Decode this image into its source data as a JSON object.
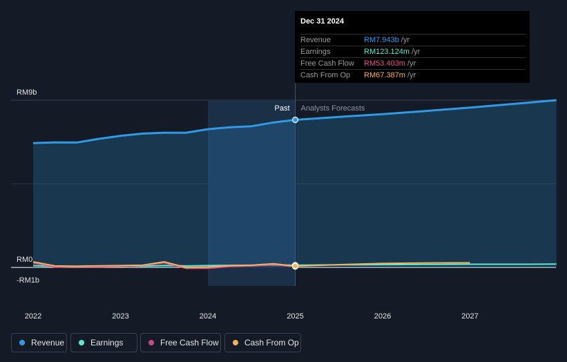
{
  "tooltip": {
    "date": "Dec 31 2024",
    "rows": [
      {
        "name": "Revenue",
        "value": "RM7.943b",
        "unit": "/yr",
        "color": "#2f9be6"
      },
      {
        "name": "Earnings",
        "value": "RM123.124m",
        "unit": "/yr",
        "color": "#5de8d0"
      },
      {
        "name": "Free Cash Flow",
        "value": "RM53.403m",
        "unit": "/yr",
        "color": "#e0508a"
      },
      {
        "name": "Cash From Op",
        "value": "RM67.387m",
        "unit": "/yr",
        "color": "#f2b25c"
      }
    ]
  },
  "legend": [
    {
      "label": "Revenue",
      "color": "#2f9be6"
    },
    {
      "label": "Earnings",
      "color": "#5de8d0"
    },
    {
      "label": "Free Cash Flow",
      "color": "#c8458a"
    },
    {
      "label": "Cash From Op",
      "color": "#f2b25c"
    }
  ],
  "chart_data": {
    "type": "line",
    "title": "",
    "xlabel": "",
    "ylabel": "",
    "xlim": [
      2022.0,
      2027.99
    ],
    "ylim": [
      -1,
      9
    ],
    "y_ticks": [
      {
        "value": 9,
        "label": "RM9b"
      },
      {
        "value": 0,
        "label": "RM0"
      },
      {
        "value": -1,
        "label": "-RM1b"
      }
    ],
    "x_ticks": [
      {
        "value": 2022,
        "label": "2022"
      },
      {
        "value": 2023,
        "label": "2023"
      },
      {
        "value": 2024,
        "label": "2024"
      },
      {
        "value": 2025,
        "label": "2025"
      },
      {
        "value": 2026,
        "label": "2026"
      },
      {
        "value": 2027,
        "label": "2027"
      }
    ],
    "past_label": "Past",
    "forecast_label": "Analysts Forecasts",
    "divider_x": 2025.0,
    "highlight_start": 2024.0,
    "grid": true,
    "legend_position": "bottom-left",
    "series": [
      {
        "name": "Revenue",
        "color": "#2f9be6",
        "area": true,
        "x": [
          2022.0,
          2022.25,
          2022.5,
          2022.75,
          2023.0,
          2023.25,
          2023.5,
          2023.75,
          2024.0,
          2024.25,
          2024.5,
          2024.75,
          2025.0,
          2025.5,
          2026.0,
          2026.5,
          2027.0,
          2027.5,
          2027.99
        ],
        "y": [
          6.69,
          6.73,
          6.72,
          6.92,
          7.08,
          7.2,
          7.25,
          7.25,
          7.44,
          7.54,
          7.6,
          7.8,
          7.94,
          8.1,
          8.25,
          8.42,
          8.6,
          8.8,
          9.0
        ]
      },
      {
        "name": "Earnings",
        "color": "#5de8d0",
        "area": false,
        "x": [
          2022.0,
          2022.25,
          2022.5,
          2022.75,
          2023.0,
          2023.25,
          2023.5,
          2023.75,
          2024.0,
          2024.25,
          2024.5,
          2024.75,
          2025.0,
          2025.5,
          2026.0,
          2026.5,
          2027.0,
          2027.5,
          2027.99
        ],
        "y": [
          0.1,
          0.05,
          0.05,
          0.06,
          0.08,
          0.07,
          0.1,
          0.08,
          0.1,
          0.11,
          0.12,
          0.13,
          0.12,
          0.14,
          0.15,
          0.16,
          0.17,
          0.17,
          0.18
        ]
      },
      {
        "name": "Free Cash Flow",
        "color": "#e0508a",
        "area": false,
        "x": [
          2022.0,
          2022.25,
          2022.5,
          2022.75,
          2023.0,
          2023.25,
          2023.5,
          2023.75,
          2024.0,
          2024.25,
          2024.5,
          2024.75,
          2025.0
        ],
        "y": [
          0.25,
          0.02,
          0.04,
          0.03,
          0.06,
          0.1,
          0.25,
          -0.05,
          -0.05,
          0.05,
          0.08,
          0.15,
          0.05
        ]
      },
      {
        "name": "Cash From Op",
        "color": "#f2b25c",
        "area": false,
        "x": [
          2022.0,
          2022.25,
          2022.5,
          2022.75,
          2023.0,
          2023.25,
          2023.5,
          2023.75,
          2024.0,
          2024.25,
          2024.5,
          2024.75,
          2025.0,
          2025.5,
          2026.0,
          2026.5,
          2027.0
        ],
        "y": [
          0.3,
          0.08,
          0.07,
          0.09,
          0.1,
          0.12,
          0.3,
          0.0,
          0.02,
          0.1,
          0.12,
          0.2,
          0.07,
          0.15,
          0.22,
          0.24,
          0.25
        ]
      }
    ]
  }
}
